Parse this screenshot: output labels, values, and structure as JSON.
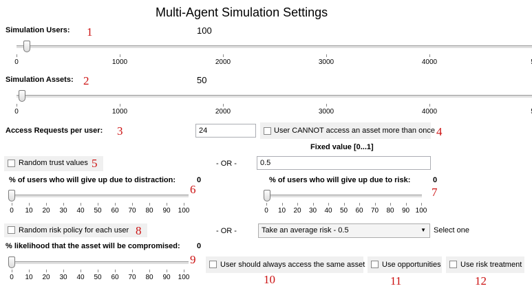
{
  "title": "Multi-Agent Simulation Settings",
  "users": {
    "label": "Simulation Users:",
    "value": "100",
    "slider_value": 100,
    "slider_max": 5000,
    "ticks": [
      "0",
      "1000",
      "2000",
      "3000",
      "4000",
      "5"
    ]
  },
  "assets": {
    "label": "Simulation Assets:",
    "value": "50",
    "slider_value": 50,
    "slider_max": 5000,
    "ticks": [
      "0",
      "1000",
      "2000",
      "3000",
      "4000",
      "5"
    ]
  },
  "access": {
    "label": "Access Requests per user:",
    "value": "24",
    "cannot_access_label": "User CANNOT access an asset more than once"
  },
  "fixed_value_label": "Fixed value [0...1]",
  "trust": {
    "random_label": "Random trust values",
    "or_label": "- OR -",
    "fixed_value": "0.5"
  },
  "distraction": {
    "label": "% of users who will give up due to distraction:",
    "value": "0",
    "slider_value": 0
  },
  "risk_giveup": {
    "label": "% of users who will give up due to risk:",
    "value": "0",
    "slider_value": 0
  },
  "risk_policy": {
    "random_label": "Random risk policy for each user",
    "or_label": "- OR -",
    "selected": "Take an average risk - 0.5",
    "select_hint": "Select one"
  },
  "compromise": {
    "label": "% likelihood that the asset will be compromised:",
    "value": "0",
    "slider_value": 0
  },
  "options": {
    "same_asset": "User should always access the same asset",
    "opportunities": "Use opportunities",
    "risk_treatment": "Use risk treatment"
  },
  "percent_ticks": [
    "0",
    "10",
    "20",
    "30",
    "40",
    "50",
    "60",
    "70",
    "80",
    "90",
    "100"
  ],
  "annotations": [
    "1",
    "2",
    "3",
    "4",
    "5",
    "6",
    "7",
    "8",
    "9",
    "10",
    "11",
    "12"
  ]
}
